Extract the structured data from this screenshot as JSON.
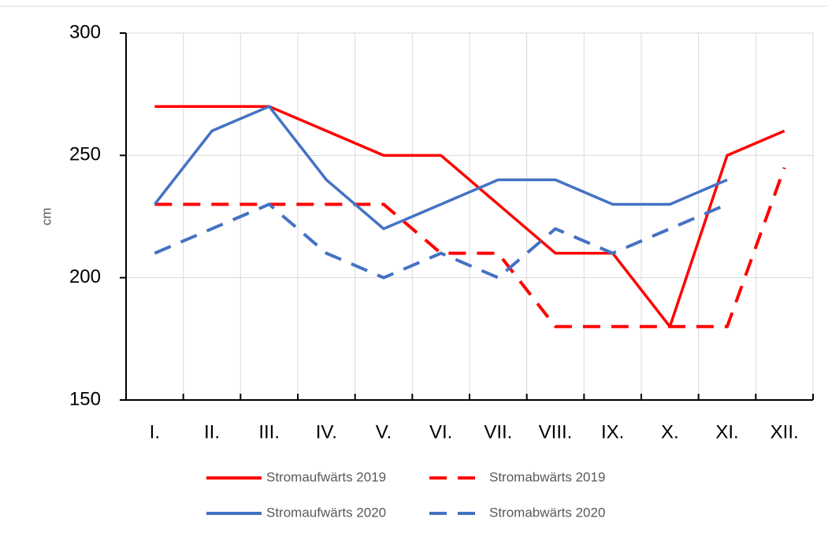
{
  "chart_data": {
    "type": "line",
    "y_label": "cm",
    "categories": [
      "I.",
      "II.",
      "III.",
      "IV.",
      "V.",
      "VI.",
      "VII.",
      "VIII.",
      "IX.",
      "X.",
      "XI.",
      "XII."
    ],
    "series": [
      {
        "name": "Stromaufwärts 2019",
        "color": "#ff0000",
        "line_style": "solid",
        "values": [
          270,
          270,
          270,
          260,
          250,
          250,
          230,
          210,
          210,
          180,
          250,
          260
        ]
      },
      {
        "name": "Stromabwärts 2019",
        "color": "#ff0000",
        "line_style": "dashed",
        "values": [
          230,
          230,
          230,
          230,
          230,
          210,
          210,
          180,
          180,
          180,
          180,
          245
        ]
      },
      {
        "name": "Stromaufwärts 2020",
        "color": "#4472c4",
        "line_style": "solid",
        "values": [
          230,
          260,
          270,
          240,
          220,
          230,
          240,
          240,
          230,
          230,
          240,
          null
        ]
      },
      {
        "name": "Stromabwärts 2020",
        "color": "#4472c4",
        "line_style": "dashed",
        "values": [
          210,
          220,
          230,
          210,
          200,
          210,
          200,
          220,
          210,
          220,
          230,
          null
        ]
      }
    ],
    "ylim": [
      150,
      300
    ],
    "yticks": [
      150,
      200,
      250,
      300
    ],
    "grid": true,
    "legend": "bottom"
  }
}
